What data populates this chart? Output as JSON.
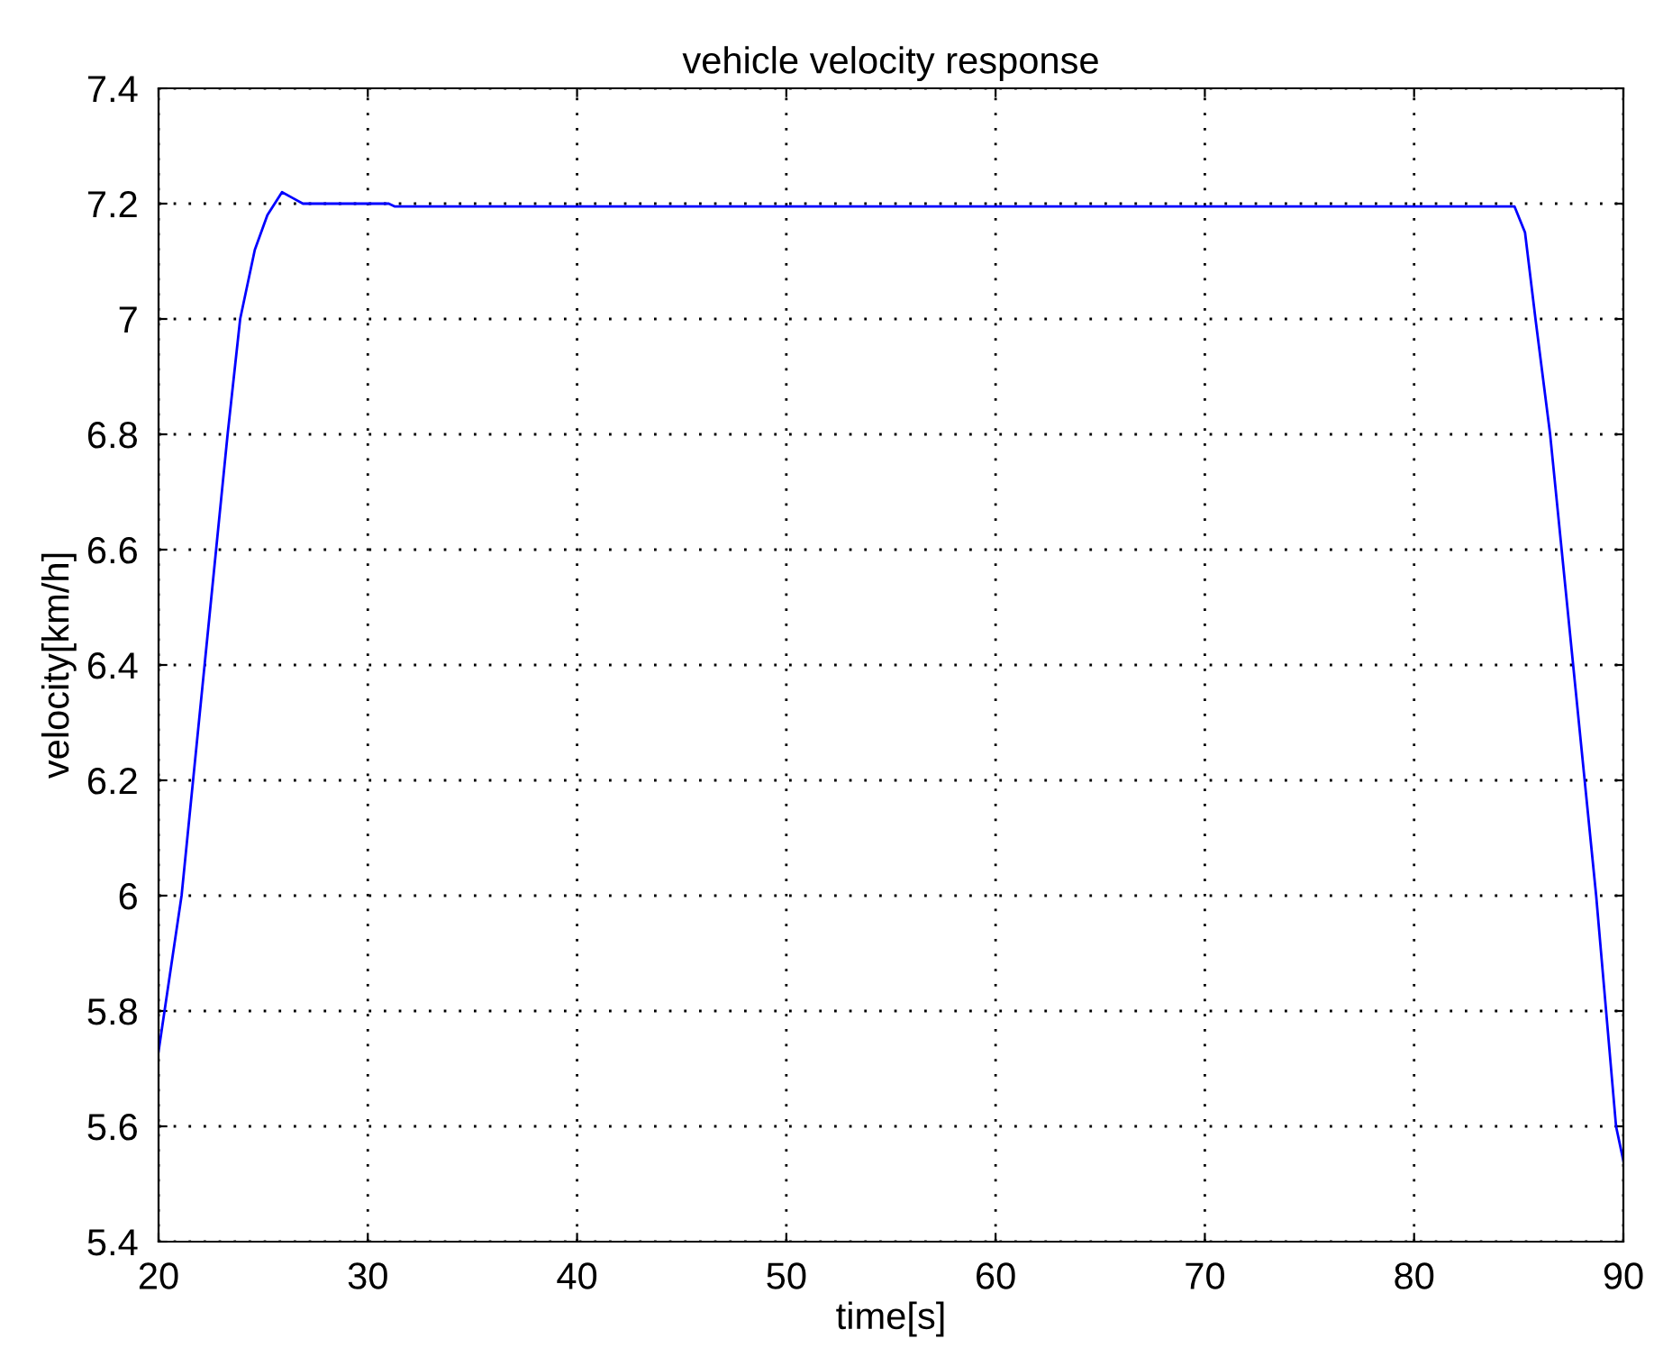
{
  "chart_data": {
    "type": "line",
    "title": "vehicle velocity response",
    "xlabel": "time[s]",
    "ylabel": "velocity[km/h]",
    "xlim": [
      20,
      90
    ],
    "ylim": [
      5.4,
      7.4
    ],
    "xticks": [
      20,
      30,
      40,
      50,
      60,
      70,
      80,
      90
    ],
    "yticks": [
      5.4,
      5.6,
      5.8,
      6,
      6.2,
      6.4,
      6.6,
      6.8,
      7,
      7.2,
      7.4
    ],
    "grid": true,
    "series": [
      {
        "color": "#0000ff",
        "x": [
          20,
          21.1,
          22.2,
          23.3,
          23.9,
          24.6,
          25.2,
          25.9,
          26.4,
          26.9,
          31,
          31.3,
          50,
          84.8,
          85.3,
          85.8,
          86.5,
          87.6,
          88.7,
          89.65,
          90
        ],
        "values": [
          5.73,
          6.0,
          6.4,
          6.8,
          7.0,
          7.12,
          7.18,
          7.22,
          7.21,
          7.2,
          7.2,
          7.195,
          7.195,
          7.195,
          7.15,
          7.0,
          6.8,
          6.4,
          6.0,
          5.6,
          5.54
        ]
      }
    ]
  }
}
